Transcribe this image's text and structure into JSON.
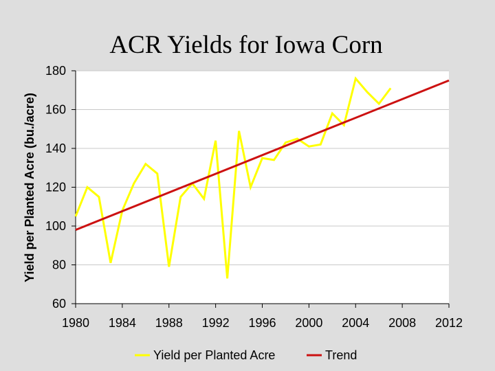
{
  "chart_data": {
    "type": "line",
    "title": "ACR Yields for Iowa Corn",
    "xlabel": "",
    "ylabel": "Yield per  Planted Acre (bu./acre)",
    "xlim": [
      1980,
      2012
    ],
    "ylim": [
      60,
      180
    ],
    "xticks": [
      "1980",
      "1984",
      "1988",
      "1992",
      "1996",
      "2000",
      "2004",
      "2008",
      "2012"
    ],
    "yticks": [
      "60",
      "80",
      "100",
      "120",
      "140",
      "160",
      "180"
    ],
    "grid": "horizontal",
    "legend": "bottom",
    "series": [
      {
        "name": "Yield per Planted Acre",
        "color": "#ffff00",
        "x": [
          1980,
          1981,
          1982,
          1983,
          1984,
          1985,
          1986,
          1987,
          1988,
          1989,
          1990,
          1991,
          1992,
          1993,
          1994,
          1995,
          1996,
          1997,
          1998,
          1999,
          2000,
          2001,
          2002,
          2003,
          2004,
          2005,
          2006,
          2007
        ],
        "values": [
          105,
          120,
          115,
          81,
          108,
          122,
          132,
          127,
          79,
          115,
          122,
          114,
          144,
          73,
          149,
          120,
          135,
          134,
          143,
          145,
          141,
          142,
          158,
          152,
          176,
          169,
          163,
          171
        ]
      },
      {
        "name": "Trend",
        "color": "#cc1111",
        "x": [
          1980,
          2012
        ],
        "values": [
          98,
          175
        ]
      }
    ]
  }
}
